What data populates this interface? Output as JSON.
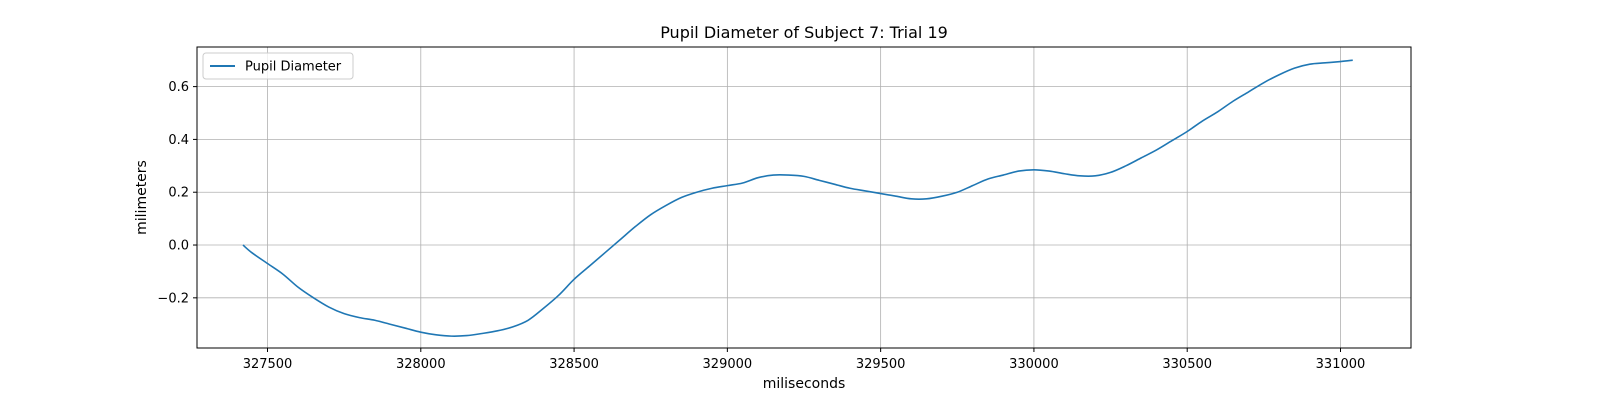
{
  "chart_data": {
    "type": "line",
    "title": "Pupil Diameter of Subject 7: Trial 19",
    "xlabel": "miliseconds",
    "ylabel": "milimeters",
    "xlim": [
      327270,
      331230
    ],
    "ylim": [
      -0.39,
      0.75
    ],
    "xticks": [
      327500,
      328000,
      328500,
      329000,
      329500,
      330000,
      330500,
      331000
    ],
    "yticks": [
      -0.2,
      0.0,
      0.2,
      0.4,
      0.6
    ],
    "ytick_labels": [
      "−0.2",
      "0.0",
      "0.2",
      "0.4",
      "0.6"
    ],
    "grid": true,
    "legend_position": "top-left",
    "series": [
      {
        "name": "Pupil Diameter",
        "color": "#1f77b4",
        "x": [
          327420,
          327450,
          327500,
          327550,
          327600,
          327650,
          327700,
          327750,
          327800,
          327850,
          327900,
          327950,
          328000,
          328050,
          328100,
          328150,
          328200,
          328250,
          328300,
          328350,
          328400,
          328450,
          328500,
          328550,
          328600,
          328650,
          328700,
          328750,
          328800,
          328850,
          328900,
          328950,
          329000,
          329050,
          329100,
          329150,
          329200,
          329250,
          329300,
          329350,
          329400,
          329450,
          329500,
          329550,
          329600,
          329650,
          329700,
          329750,
          329800,
          329850,
          329900,
          329950,
          330000,
          330050,
          330100,
          330150,
          330200,
          330250,
          330300,
          330350,
          330400,
          330450,
          330500,
          330550,
          330600,
          330650,
          330700,
          330750,
          330800,
          330850,
          330900,
          330950,
          331000,
          331040
        ],
        "y": [
          0.0,
          -0.03,
          -0.07,
          -0.11,
          -0.16,
          -0.2,
          -0.235,
          -0.26,
          -0.275,
          -0.285,
          -0.3,
          -0.315,
          -0.33,
          -0.34,
          -0.345,
          -0.343,
          -0.335,
          -0.325,
          -0.31,
          -0.285,
          -0.24,
          -0.19,
          -0.13,
          -0.08,
          -0.03,
          0.02,
          0.07,
          0.115,
          0.15,
          0.18,
          0.2,
          0.215,
          0.225,
          0.235,
          0.255,
          0.265,
          0.265,
          0.26,
          0.245,
          0.23,
          0.215,
          0.205,
          0.195,
          0.185,
          0.175,
          0.175,
          0.185,
          0.2,
          0.225,
          0.25,
          0.265,
          0.28,
          0.285,
          0.28,
          0.27,
          0.262,
          0.262,
          0.275,
          0.3,
          0.33,
          0.36,
          0.395,
          0.43,
          0.47,
          0.505,
          0.545,
          0.58,
          0.615,
          0.645,
          0.67,
          0.685,
          0.69,
          0.695,
          0.7
        ]
      }
    ]
  }
}
